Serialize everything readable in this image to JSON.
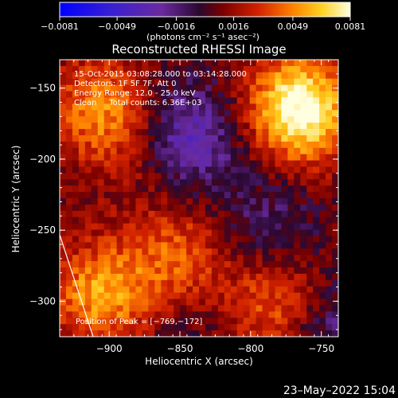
{
  "chart_data": {
    "type": "heatmap",
    "title": "Reconstructed RHESSI Image",
    "xlabel": "Heliocentric X (arcsec)",
    "ylabel": "Heliocentric Y (arcsec)",
    "xlim": [
      -935,
      -738
    ],
    "ylim": [
      -325,
      -130
    ],
    "xticks": [
      -900,
      -850,
      -800,
      -750
    ],
    "xtick_labels": [
      "−900",
      "−850",
      "−800",
      "−750"
    ],
    "yticks": [
      -150,
      -200,
      -250,
      -300
    ],
    "ytick_labels": [
      "−150",
      "−200",
      "−250",
      "−300"
    ],
    "colorbar": {
      "range": [
        -0.0081,
        0.0081
      ],
      "ticks": [
        -0.0081,
        -0.0049,
        -0.0016,
        0.0016,
        0.0049,
        0.0081
      ],
      "tick_labels": [
        "−0.0081",
        "−0.0049",
        "−0.0016",
        "0.0016",
        "0.0049",
        "0.0081"
      ],
      "units_label": "(photons cm⁻² s⁻¹ asec⁻²)"
    },
    "grid": false,
    "annotations": [
      "15-Oct-2015 03:08:28.000 to 03:14:28.000",
      "Detectors: 1F 5F 7F, Att 0",
      "Energy Range: 12.0 - 25.0 keV",
      "Clean     Total counts: 6.36E+03"
    ],
    "peak_label": "Position of Peak = [−769,−172]",
    "peak": [
      -769,
      -172
    ],
    "intensity_blobs": [
      {
        "x": -765,
        "y": -165,
        "value": 0.0081
      },
      {
        "x": -905,
        "y": -165,
        "value": 0.0045
      },
      {
        "x": -870,
        "y": -200,
        "value": 0.0012
      },
      {
        "x": -850,
        "y": -270,
        "value": 0.0035
      },
      {
        "x": -905,
        "y": -295,
        "value": 0.005
      },
      {
        "x": -780,
        "y": -305,
        "value": 0.0038
      },
      {
        "x": -845,
        "y": -185,
        "value": -0.0045
      },
      {
        "x": -790,
        "y": -245,
        "value": -0.002
      },
      {
        "x": -745,
        "y": -320,
        "value": -0.003
      },
      {
        "x": -850,
        "y": -315,
        "value": -0.001
      }
    ]
  },
  "timestamp": "23–May–2022 15:04",
  "colors": {
    "background": "#000000",
    "foreground": "#ffffff"
  }
}
